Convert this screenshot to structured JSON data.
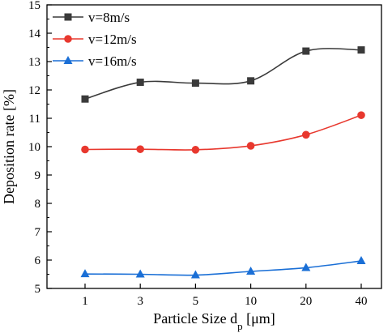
{
  "chart_data": {
    "type": "line",
    "categories": [
      "1",
      "3",
      "5",
      "10",
      "20",
      "40"
    ],
    "xlabel_main": "Particle Size d",
    "xlabel_sub": "p",
    "xlabel_unit": " [μm]",
    "ylabel": "Deposition rate [%]",
    "ylim": [
      5,
      15
    ],
    "yticks": [
      "5",
      "6",
      "7",
      "8",
      "9",
      "10",
      "11",
      "12",
      "13",
      "14",
      "15"
    ],
    "grid": false,
    "legend_position": "top-left",
    "series": [
      {
        "name": "v=8m/s",
        "values": [
          11.68,
          12.27,
          12.24,
          12.32,
          13.37,
          13.41
        ],
        "color": "#3a3a3a",
        "marker": "square"
      },
      {
        "name": "v=12m/s",
        "values": [
          9.9,
          9.91,
          9.89,
          10.03,
          10.42,
          11.11
        ],
        "color": "#e8382e",
        "marker": "circle"
      },
      {
        "name": "v=16m/s",
        "values": [
          5.51,
          5.5,
          5.47,
          5.6,
          5.73,
          5.97
        ],
        "color": "#1a6fd6",
        "marker": "triangle"
      }
    ]
  }
}
